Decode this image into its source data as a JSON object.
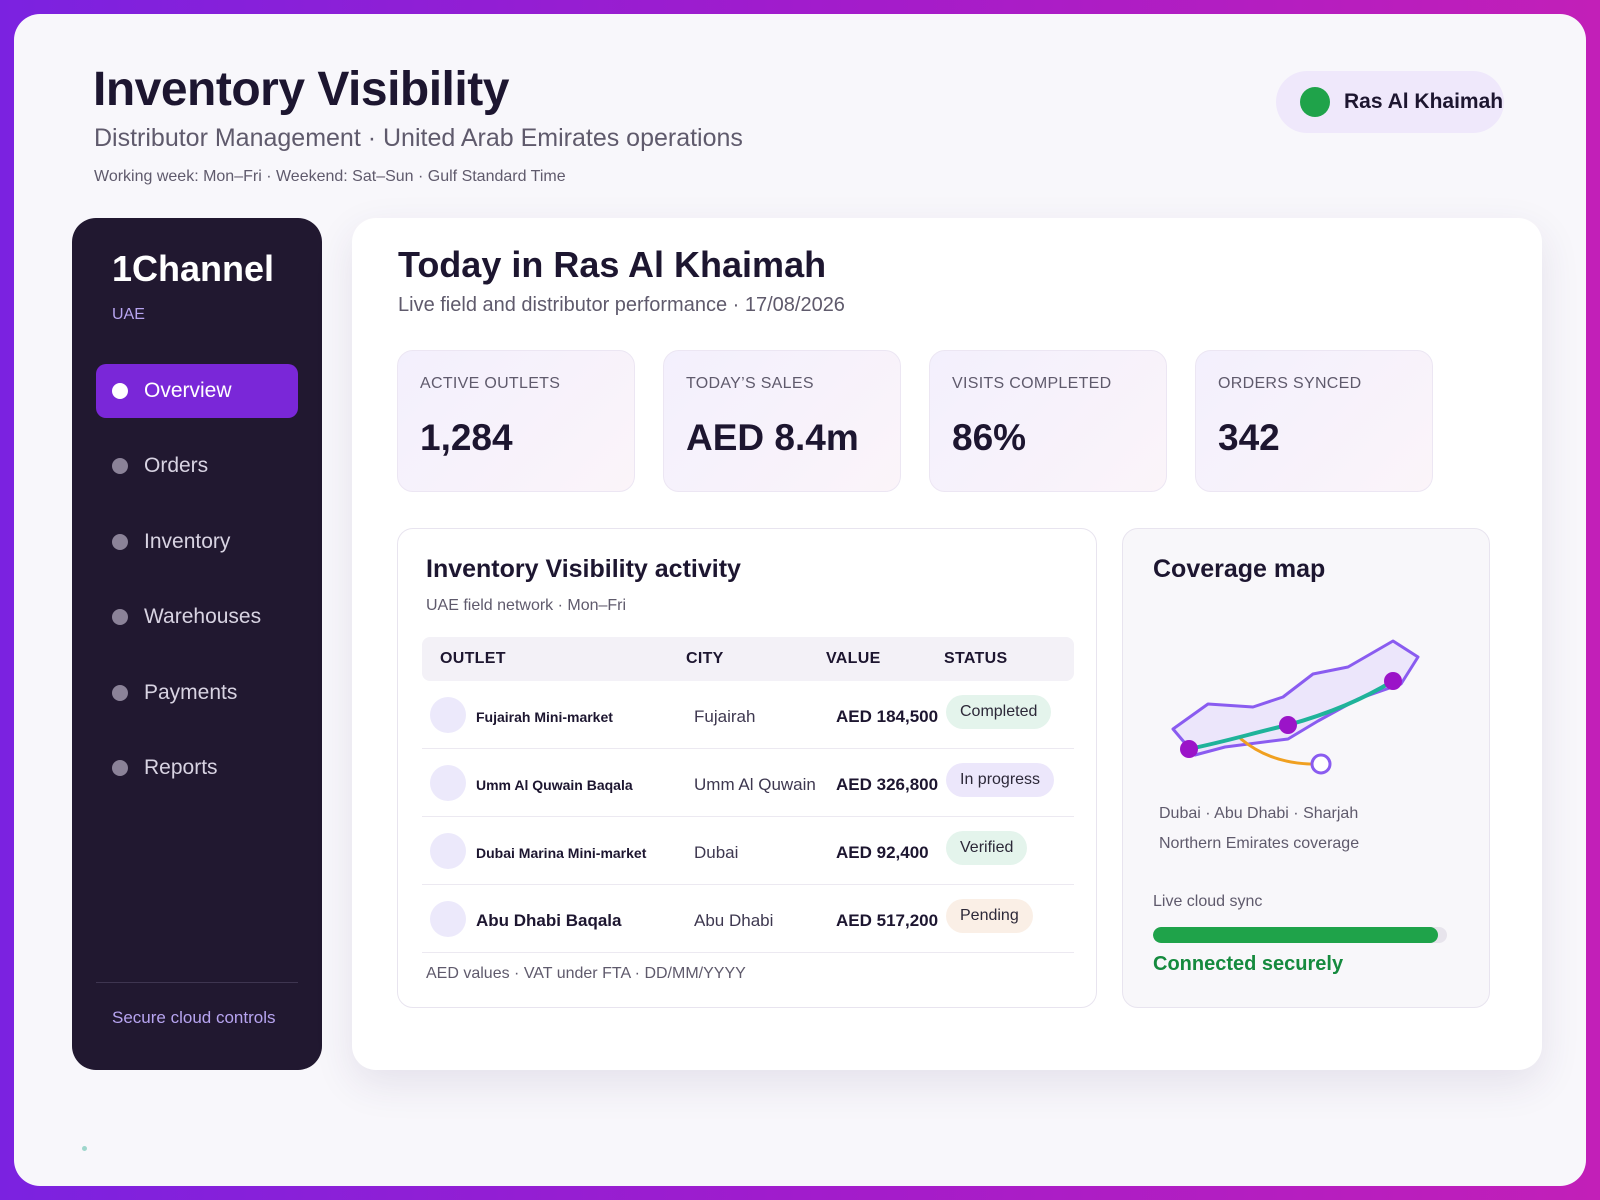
{
  "header": {
    "title": "Inventory Visibility",
    "subtitle": "Distributor Management · United Arab Emirates operations",
    "note": "Working week: Mon–Fri · Weekend: Sat–Sun · Gulf Standard Time",
    "region": "Ras Al Khaimah",
    "region_status_color": "#1fa34a"
  },
  "sidebar": {
    "brand": "1Channel",
    "region": "UAE",
    "items": [
      {
        "label": "Overview",
        "active": true
      },
      {
        "label": "Orders"
      },
      {
        "label": "Inventory"
      },
      {
        "label": "Warehouses"
      },
      {
        "label": "Payments"
      },
      {
        "label": "Reports"
      }
    ],
    "footer": "Secure cloud controls"
  },
  "main": {
    "title": "Today in Ras Al Khaimah",
    "subtitle": "Live field and distributor performance · 17/08/2026",
    "kpis": [
      {
        "label": "ACTIVE OUTLETS",
        "value": "1,284"
      },
      {
        "label": "TODAY’S SALES",
        "value": "AED 8.4m"
      },
      {
        "label": "VISITS COMPLETED",
        "value": "86%"
      },
      {
        "label": "ORDERS SYNCED",
        "value": "342"
      }
    ]
  },
  "activity": {
    "title": "Inventory Visibility activity",
    "subtitle": "UAE field network · Mon–Fri",
    "columns": [
      "OUTLET",
      "CITY",
      "VALUE",
      "STATUS"
    ],
    "rows": [
      {
        "outlet": "Fujairah Mini-market",
        "city": "Fujairah",
        "value": "AED 184,500",
        "status": "Completed"
      },
      {
        "outlet": "Umm Al Quwain Baqala",
        "city": "Umm Al Quwain",
        "value": "AED 326,800",
        "status": "In progress"
      },
      {
        "outlet": "Dubai Marina Mini-market",
        "city": "Dubai",
        "value": "AED 92,400",
        "status": "Verified"
      },
      {
        "outlet": "Abu Dhabi Baqala",
        "city": "Abu Dhabi",
        "value": "AED 517,200",
        "status": "Pending"
      }
    ],
    "footer": "AED values · VAT under FTA · DD/MM/YYYY"
  },
  "coverage": {
    "title": "Coverage map",
    "cities": "Dubai · Abu Dhabi · Sharjah",
    "region": "Northern Emirates coverage",
    "sync_label": "Live cloud sync",
    "sync_progress": 0.97,
    "sync_status": "Connected securely",
    "colors": {
      "outline": "#8a5cf0",
      "route": "#1fb39a",
      "branch": "#f0a020",
      "pin": "#9b14c8"
    }
  }
}
